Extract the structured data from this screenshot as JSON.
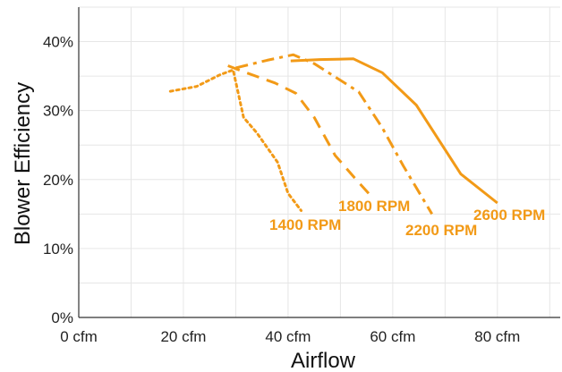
{
  "chart_data": {
    "type": "line",
    "xlabel": "Airflow",
    "ylabel": "Blower Efficiency",
    "xlim": [
      0,
      92
    ],
    "ylim": [
      0,
      45
    ],
    "grid": true,
    "x_ticks": [
      0,
      20,
      40,
      60,
      80
    ],
    "x_tick_labels": [
      "0 cfm",
      "20 cfm",
      "40 cfm",
      "60 cfm",
      "80 cfm"
    ],
    "y_ticks": [
      0,
      10,
      20,
      30,
      40
    ],
    "y_tick_labels": [
      "0%",
      "10%",
      "20%",
      "30%",
      "40%"
    ],
    "line_color": "#F29A17",
    "series": [
      {
        "name": "1400 RPM",
        "style": "dotted",
        "x": [
          17.5,
          22.5,
          27.0,
          29.5,
          31.5,
          34.0,
          38.0,
          40.0,
          42.5
        ],
        "y": [
          32.8,
          33.5,
          35.2,
          35.9,
          29.0,
          26.8,
          22.5,
          18.0,
          15.5
        ]
      },
      {
        "name": "1800 RPM",
        "style": "dashed",
        "x": [
          28.5,
          32.0,
          37.5,
          41.5,
          45.0,
          49.0,
          53.0,
          56.0
        ],
        "y": [
          36.5,
          35.5,
          34.0,
          32.5,
          29.0,
          23.5,
          20.0,
          17.5
        ]
      },
      {
        "name": "2200 RPM",
        "style": "dashdot",
        "x": [
          30.0,
          36.0,
          41.0,
          45.0,
          53.5,
          58.0,
          62.0,
          67.5
        ],
        "y": [
          36.2,
          37.3,
          38.1,
          36.8,
          32.7,
          27.5,
          22.0,
          15.0
        ]
      },
      {
        "name": "2600 RPM",
        "style": "solid",
        "x": [
          40.5,
          46.0,
          52.5,
          58.0,
          64.5,
          73.0,
          80.0
        ],
        "y": [
          37.2,
          37.4,
          37.5,
          35.5,
          30.8,
          20.8,
          16.6
        ]
      }
    ],
    "annotations": [
      {
        "text": "1400 RPM",
        "series": "1400 RPM"
      },
      {
        "text": "1800 RPM",
        "series": "1800 RPM"
      },
      {
        "text": "2200 RPM",
        "series": "2200 RPM"
      },
      {
        "text": "2600 RPM",
        "series": "2600 RPM"
      }
    ]
  }
}
